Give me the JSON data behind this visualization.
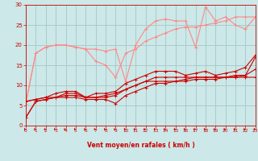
{
  "bg_color": "#cce8e8",
  "grid_color": "#aacccc",
  "line_color_light": "#ff8888",
  "line_color_dark": "#cc0000",
  "xlabel": "Vent moyen/en rafales ( km/h )",
  "xlim": [
    0,
    23
  ],
  "ylim": [
    0,
    30
  ],
  "yticks": [
    0,
    5,
    10,
    15,
    20,
    25,
    30
  ],
  "xticks": [
    0,
    1,
    2,
    3,
    4,
    5,
    6,
    7,
    8,
    9,
    10,
    11,
    12,
    13,
    14,
    15,
    16,
    17,
    18,
    19,
    20,
    21,
    22,
    23
  ],
  "series_light": [
    {
      "x": [
        0,
        1,
        2,
        3,
        4,
        5,
        6,
        7,
        8,
        9,
        10,
        11,
        12,
        13,
        14,
        15,
        16,
        17,
        18,
        19,
        20,
        21,
        22,
        23
      ],
      "y": [
        5.5,
        18,
        19.5,
        20,
        20,
        19.5,
        19,
        19,
        18.5,
        19,
        11,
        20,
        24,
        26,
        26.5,
        26,
        26,
        19.5,
        29.5,
        26,
        27,
        25,
        24,
        27
      ]
    },
    {
      "x": [
        0,
        1,
        2,
        3,
        4,
        5,
        6,
        7,
        8,
        9,
        10,
        11,
        12,
        13,
        14,
        15,
        16,
        17,
        18,
        19,
        20,
        21,
        22,
        23
      ],
      "y": [
        5.5,
        18,
        19.5,
        20,
        20,
        19.5,
        19,
        16,
        15,
        12,
        18,
        19,
        21,
        22,
        23,
        24,
        24.5,
        24.5,
        25,
        25.5,
        26,
        27,
        27,
        27
      ]
    }
  ],
  "series_dark": [
    {
      "x": [
        0,
        1,
        2,
        3,
        4,
        5,
        6,
        7,
        8,
        9,
        10,
        11,
        12,
        13,
        14,
        15,
        16,
        17,
        18,
        19,
        20,
        21,
        22,
        23
      ],
      "y": [
        2,
        6,
        6.5,
        7,
        7,
        7,
        6.5,
        6.5,
        6.5,
        5.5,
        7.5,
        8.5,
        9.5,
        10.5,
        10.5,
        11,
        11,
        11.5,
        11.5,
        11.5,
        12,
        12,
        12.5,
        17
      ]
    },
    {
      "x": [
        0,
        1,
        2,
        3,
        4,
        5,
        6,
        7,
        8,
        9,
        10,
        11,
        12,
        13,
        14,
        15,
        16,
        17,
        18,
        19,
        20,
        21,
        22,
        23
      ],
      "y": [
        2,
        6,
        6.5,
        7,
        7.5,
        7.5,
        7,
        7,
        7,
        7.5,
        9,
        10,
        11,
        12,
        12,
        12,
        12,
        12,
        12,
        12,
        12,
        12.5,
        12.5,
        14
      ]
    },
    {
      "x": [
        0,
        1,
        2,
        3,
        4,
        5,
        6,
        7,
        8,
        9,
        10,
        11,
        12,
        13,
        14,
        15,
        16,
        17,
        18,
        19,
        20,
        21,
        22,
        23
      ],
      "y": [
        6,
        6.5,
        7,
        7,
        8,
        8,
        7,
        7,
        7.5,
        8,
        9,
        10,
        11,
        11,
        11,
        11,
        11.5,
        12,
        12,
        12,
        12,
        12,
        12,
        12
      ]
    },
    {
      "x": [
        0,
        1,
        2,
        3,
        4,
        5,
        6,
        7,
        8,
        9,
        10,
        11,
        12,
        13,
        14,
        15,
        16,
        17,
        18,
        19,
        20,
        21,
        22,
        23
      ],
      "y": [
        6,
        6.5,
        7,
        8,
        8.5,
        8.5,
        7,
        8,
        8,
        8.5,
        10.5,
        11.5,
        12.5,
        13.5,
        13.5,
        13.5,
        12.5,
        13,
        13.5,
        12.5,
        13,
        13.5,
        14.5,
        17.5
      ]
    }
  ]
}
